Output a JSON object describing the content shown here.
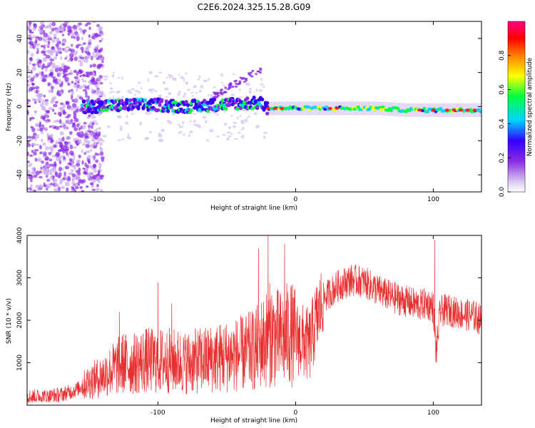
{
  "title": "C2E6.2024.325.15.28.G09",
  "colors": {
    "snr_line": "#e83030",
    "frame": "#000000",
    "colorbar": [
      "#ffffff",
      "#d9c8f0",
      "#8a2be2",
      "#3300ff",
      "#00d4ff",
      "#00ff40",
      "#ffff00",
      "#ff8000",
      "#ff0000",
      "#ff0080"
    ]
  },
  "chart_data": [
    {
      "type": "heatmap",
      "title": "C2E6.2024.325.15.28.G09",
      "xlabel": "Height of straight line (km)",
      "ylabel": "Frequency (Hz)",
      "xlim": [
        -195,
        135
      ],
      "ylim": [
        -50,
        50
      ],
      "x_ticks": [
        -100,
        0,
        100
      ],
      "x_tick_labels": [
        "-100",
        "0",
        "100"
      ],
      "y_ticks": [
        -40,
        -20,
        0,
        20,
        40
      ],
      "y_tick_labels": [
        "-40",
        "-20",
        "0",
        "20",
        "40"
      ],
      "colorbar": {
        "label": "Normalized spectral amplitude",
        "range": [
          0,
          1
        ],
        "ticks": [
          0.0,
          0.2,
          0.4,
          0.6,
          0.8
        ],
        "tick_labels": [
          "0.0",
          "0.2",
          "0.4",
          "0.6",
          "0.8"
        ]
      },
      "ridge": {
        "description_points_x": [
          -150,
          -120,
          -100,
          -80,
          -60,
          -40,
          -25,
          -20,
          0,
          20,
          40,
          60,
          80,
          100,
          120,
          135
        ],
        "frequency_hz": [
          0,
          1,
          1,
          0,
          1,
          2,
          2,
          -1,
          -1,
          -1,
          -1,
          -1,
          -2,
          -2,
          -2,
          -2
        ]
      },
      "grid": false
    },
    {
      "type": "line",
      "xlabel": "Height of straight line (km)",
      "ylabel": "SNR (10 * v/v)",
      "xlim": [
        -195,
        135
      ],
      "ylim": [
        0,
        4000
      ],
      "x_ticks": [
        -100,
        0,
        100
      ],
      "x_tick_labels": [
        "-100",
        "0",
        "100"
      ],
      "y_ticks": [
        1000,
        2000,
        3000,
        4000
      ],
      "y_tick_labels": [
        "1000",
        "2000",
        "3000",
        "4000"
      ],
      "grid": false,
      "series": [
        {
          "x": [
            -195,
            -180,
            -170,
            -160,
            -150,
            -140,
            -130,
            -125,
            -120,
            -110,
            -100,
            -90,
            -80,
            -70,
            -60,
            -50,
            -40,
            -30,
            -25,
            -20,
            -18,
            -15,
            -10,
            -5,
            0,
            5,
            10,
            15,
            20,
            30,
            40,
            50,
            60,
            70,
            80,
            90,
            95,
            100,
            102,
            105,
            110,
            120,
            130,
            135
          ],
          "values": [
            200,
            200,
            250,
            350,
            550,
            700,
            900,
            1000,
            950,
            1050,
            1050,
            1050,
            1000,
            1050,
            1100,
            1150,
            1200,
            1300,
            1450,
            1600,
            1700,
            1600,
            1550,
            1700,
            1600,
            1500,
            1400,
            2000,
            2500,
            2800,
            2950,
            2900,
            2700,
            2550,
            2450,
            2350,
            2400,
            2300,
            1200,
            2200,
            2250,
            2150,
            2100,
            2000
          ],
          "peaks": [
            {
              "x": -128,
              "value": 2200
            },
            {
              "x": -100,
              "value": 2900
            },
            {
              "x": -90,
              "value": 2400
            },
            {
              "x": -27,
              "value": 3700
            },
            {
              "x": -20,
              "value": 4000
            },
            {
              "x": -8,
              "value": 3800
            },
            {
              "x": 101,
              "value": 3900
            }
          ]
        }
      ]
    }
  ]
}
